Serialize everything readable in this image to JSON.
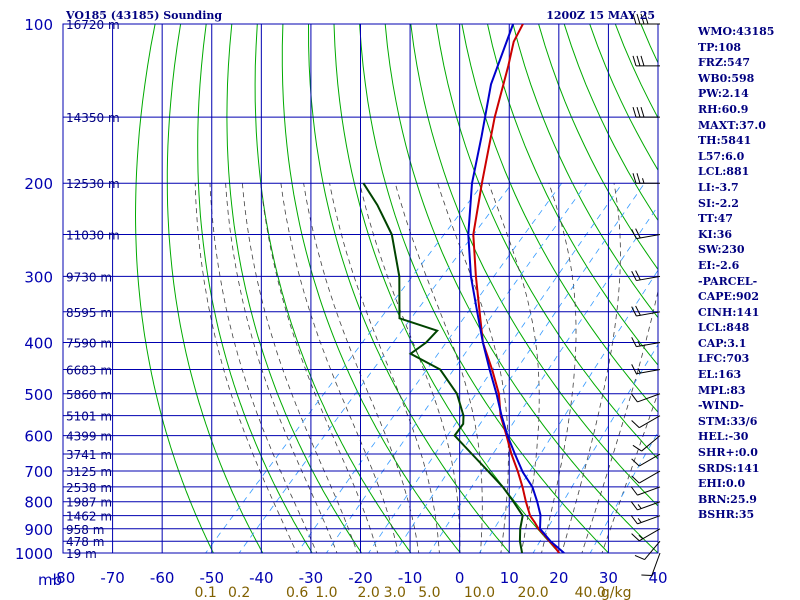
{
  "header": {
    "station": "VO185 (43185) Sounding",
    "valid_time": "1200Z 15 MAY 25"
  },
  "stats": [
    "WMO:43185",
    "TP:108",
    "FRZ:547",
    "WB0:598",
    "PW:2.14",
    "RH:60.9",
    "MAXT:37.0",
    "TH:5841",
    "L57:6.0",
    "LCL:881",
    "LI:-3.7",
    "SI:-2.2",
    "TT:47",
    "KI:36",
    "SW:230",
    "EI:-2.6",
    "-PARCEL-",
    "CAPE:902",
    "CINH:141",
    "LCL:848",
    "CAP:3.1",
    "LFC:703",
    "EL:163",
    "MPL:83",
    "-WIND-",
    "STM:33/6",
    "HEL:-30",
    "SHR+:0.0",
    "SRDS:141",
    "EHI:0.0",
    "BRN:25.9",
    "BSHR:35"
  ],
  "colors": {
    "grid": "#0000b0",
    "dry_adiabat": "#00aa00",
    "moist_adiabat": "#404040",
    "mixing_ratio": "#3399ff",
    "temperature": "#cc0000",
    "dewpoint": "#004400",
    "parcel": "#0000cc",
    "mixing_label": "#806000",
    "wind": "#000000"
  },
  "chart_data": {
    "type": "line",
    "title": "VO185 (43185) Sounding",
    "subtitle": "1200Z 15 MAY 25",
    "pressure_axis": {
      "unit": "mb",
      "ticks": [
        100,
        200,
        300,
        400,
        500,
        600,
        700,
        800,
        900,
        1000
      ]
    },
    "temperature_axis": {
      "ticks": [
        "-80",
        "-70",
        "-60",
        "-50",
        "-40",
        "-30",
        "-20",
        "-10",
        "0",
        "10",
        "20",
        "30",
        "40"
      ]
    },
    "height_labels": [
      {
        "p": 100,
        "label": "16720 m"
      },
      {
        "p": 150,
        "label": "14350 m"
      },
      {
        "p": 200,
        "label": "12530 m"
      },
      {
        "p": 250,
        "label": "11030 m"
      },
      {
        "p": 300,
        "label": "9730 m"
      },
      {
        "p": 350,
        "label": "8595 m"
      },
      {
        "p": 400,
        "label": "7590 m"
      },
      {
        "p": 450,
        "label": "6683 m"
      },
      {
        "p": 500,
        "label": "5860 m"
      },
      {
        "p": 550,
        "label": "5101 m"
      },
      {
        "p": 600,
        "label": "4399 m"
      },
      {
        "p": 650,
        "label": "3741 m"
      },
      {
        "p": 700,
        "label": "3125 m"
      },
      {
        "p": 750,
        "label": "2538 m"
      },
      {
        "p": 800,
        "label": "1987 m"
      },
      {
        "p": 850,
        "label": "1462 m"
      },
      {
        "p": 900,
        "label": "958 m"
      },
      {
        "p": 950,
        "label": "478 m"
      },
      {
        "p": 1000,
        "label": "19 m"
      }
    ],
    "mixing_ratio_labels": [
      "0.1",
      "0.2",
      "0.6",
      "1.0",
      "2.0",
      "3.0",
      "5.0",
      "10.0",
      "20.0",
      "40.0",
      "g/kg"
    ],
    "series": [
      {
        "role": "temperature",
        "points": [
          [
            1000,
            30.0
          ],
          [
            975,
            28.0
          ],
          [
            950,
            25.8
          ],
          [
            925,
            23.6
          ],
          [
            900,
            21.2
          ],
          [
            875,
            19.2
          ],
          [
            850,
            17.0
          ],
          [
            800,
            13.5
          ],
          [
            750,
            10.0
          ],
          [
            700,
            6.0
          ],
          [
            650,
            1.5
          ],
          [
            600,
            -3.0
          ],
          [
            550,
            -8.0
          ],
          [
            500,
            -12.5
          ],
          [
            450,
            -18.5
          ],
          [
            400,
            -25.5
          ],
          [
            350,
            -32.0
          ],
          [
            300,
            -39.5
          ],
          [
            250,
            -48.0
          ],
          [
            200,
            -56.0
          ],
          [
            150,
            -66.0
          ],
          [
            120,
            -73.0
          ],
          [
            108,
            -76.5
          ],
          [
            100,
            -78.0
          ]
        ]
      },
      {
        "role": "dewpoint",
        "points": [
          [
            1000,
            22.5
          ],
          [
            950,
            19.8
          ],
          [
            900,
            17.5
          ],
          [
            850,
            15.5
          ],
          [
            800,
            11.0
          ],
          [
            750,
            6.0
          ],
          [
            700,
            0.0
          ],
          [
            650,
            -6.5
          ],
          [
            600,
            -13.5
          ],
          [
            570,
            -14.0
          ],
          [
            550,
            -15.5
          ],
          [
            500,
            -21.0
          ],
          [
            450,
            -29.0
          ],
          [
            420,
            -38.0
          ],
          [
            400,
            -37.0
          ],
          [
            380,
            -37.0
          ],
          [
            360,
            -47.0
          ],
          [
            300,
            -55.0
          ],
          [
            250,
            -64.5
          ],
          [
            220,
            -73.0
          ],
          [
            200,
            -80.0
          ]
        ]
      },
      {
        "role": "parcel",
        "points": [
          [
            1000,
            31.0
          ],
          [
            950,
            26.0
          ],
          [
            900,
            21.5
          ],
          [
            848,
            19.0
          ],
          [
            800,
            15.8
          ],
          [
            750,
            12.0
          ],
          [
            703,
            7.2
          ],
          [
            650,
            2.2
          ],
          [
            600,
            -2.8
          ],
          [
            550,
            -7.8
          ],
          [
            500,
            -13.0
          ],
          [
            450,
            -19.0
          ],
          [
            400,
            -25.5
          ],
          [
            350,
            -32.5
          ],
          [
            300,
            -40.5
          ],
          [
            250,
            -49.0
          ],
          [
            200,
            -58.0
          ],
          [
            163,
            -65.0
          ],
          [
            130,
            -73.0
          ],
          [
            100,
            -80.0
          ]
        ]
      }
    ],
    "wind_barbs": [
      {
        "p": 1000,
        "dir": 200,
        "spd": 10
      },
      {
        "p": 950,
        "dir": 220,
        "spd": 10
      },
      {
        "p": 900,
        "dir": 240,
        "spd": 15
      },
      {
        "p": 850,
        "dir": 250,
        "spd": 15
      },
      {
        "p": 800,
        "dir": 250,
        "spd": 15
      },
      {
        "p": 750,
        "dir": 250,
        "spd": 10
      },
      {
        "p": 700,
        "dir": 240,
        "spd": 10
      },
      {
        "p": 650,
        "dir": 240,
        "spd": 10
      },
      {
        "p": 600,
        "dir": 230,
        "spd": 10
      },
      {
        "p": 550,
        "dir": 240,
        "spd": 10
      },
      {
        "p": 500,
        "dir": 250,
        "spd": 10
      },
      {
        "p": 450,
        "dir": 260,
        "spd": 15
      },
      {
        "p": 400,
        "dir": 260,
        "spd": 15
      },
      {
        "p": 350,
        "dir": 260,
        "spd": 20
      },
      {
        "p": 300,
        "dir": 260,
        "spd": 20
      },
      {
        "p": 250,
        "dir": 260,
        "spd": 20
      },
      {
        "p": 200,
        "dir": 270,
        "spd": 25
      },
      {
        "p": 150,
        "dir": 270,
        "spd": 30
      },
      {
        "p": 120,
        "dir": 270,
        "spd": 30
      },
      {
        "p": 100,
        "dir": 270,
        "spd": 40
      }
    ]
  }
}
